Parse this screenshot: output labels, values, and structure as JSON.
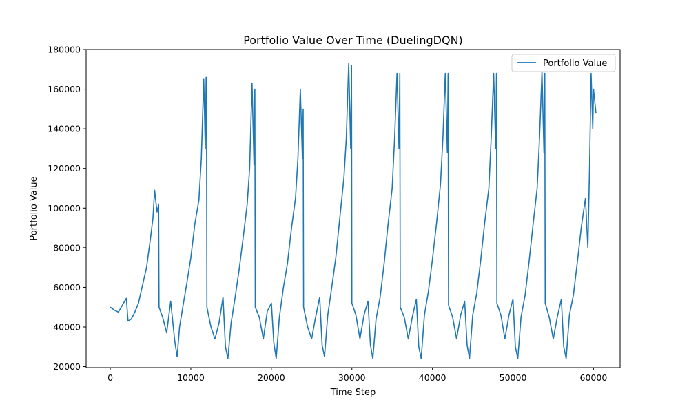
{
  "chart_data": {
    "type": "line",
    "title": "Portfolio Value Over Time (DuelingDQN)",
    "xlabel": "Time Step",
    "ylabel": "Portfolio Value",
    "xlim": [
      -3000,
      63300
    ],
    "ylim": [
      19500,
      180000
    ],
    "xticks": [
      0,
      10000,
      20000,
      30000,
      40000,
      50000,
      60000
    ],
    "yticks": [
      20000,
      40000,
      60000,
      80000,
      100000,
      120000,
      140000,
      160000,
      180000
    ],
    "grid": false,
    "legend": {
      "position": "top-right",
      "entries": [
        "Portfolio Value"
      ]
    },
    "series": [
      {
        "name": "Portfolio Value",
        "color": "#1f77b4",
        "x": [
          0,
          500,
          1000,
          1500,
          2000,
          2200,
          2600,
          3000,
          3500,
          4000,
          4500,
          5000,
          5300,
          5500,
          5800,
          6000,
          6050,
          6500,
          7000,
          7500,
          8000,
          8300,
          8600,
          9000,
          9500,
          10000,
          10500,
          11000,
          11300,
          11600,
          11800,
          11900,
          11950,
          12000,
          12500,
          13000,
          13500,
          14000,
          14300,
          14600,
          15000,
          15500,
          16000,
          16500,
          17000,
          17300,
          17600,
          17850,
          17950,
          18000,
          18500,
          19000,
          19500,
          20000,
          20300,
          20600,
          21000,
          21500,
          22000,
          22500,
          23000,
          23300,
          23600,
          23850,
          23950,
          24000,
          24500,
          25000,
          25500,
          26000,
          26300,
          26600,
          27000,
          27500,
          28000,
          28500,
          29000,
          29300,
          29600,
          29850,
          29950,
          30000,
          30500,
          31000,
          31500,
          32000,
          32300,
          32600,
          33000,
          33500,
          34000,
          34500,
          35000,
          35300,
          35600,
          35850,
          35950,
          36000,
          36500,
          37000,
          37500,
          38000,
          38300,
          38600,
          39000,
          39500,
          40000,
          40500,
          41000,
          41300,
          41600,
          41850,
          41950,
          42000,
          42500,
          43000,
          43500,
          44000,
          44300,
          44600,
          45000,
          45500,
          46000,
          46500,
          47000,
          47300,
          47600,
          47850,
          47950,
          48000,
          48500,
          49000,
          49500,
          50000,
          50300,
          50600,
          51000,
          51500,
          52000,
          52500,
          53000,
          53300,
          53600,
          53850,
          53950,
          54000,
          54500,
          55000,
          55500,
          56000,
          56300,
          56600,
          57000,
          57500,
          58000,
          58500,
          59000,
          59300,
          59500,
          59700,
          59900,
          60000,
          60300
        ],
        "values": [
          50000,
          48500,
          47500,
          51000,
          54500,
          43000,
          44000,
          47000,
          52000,
          61000,
          70000,
          85000,
          95000,
          109000,
          98000,
          102000,
          50000,
          45000,
          37000,
          53000,
          33000,
          25000,
          40000,
          50000,
          62000,
          75000,
          92000,
          104000,
          125000,
          165000,
          130000,
          166000,
          148000,
          50000,
          40000,
          34000,
          42000,
          55000,
          30000,
          24000,
          42000,
          55000,
          69000,
          85000,
          102000,
          120000,
          163000,
          122000,
          160000,
          50000,
          45000,
          34000,
          48000,
          52000,
          32000,
          24000,
          45000,
          60000,
          72000,
          90000,
          105000,
          125000,
          160000,
          125000,
          150000,
          50000,
          40000,
          34000,
          45000,
          55000,
          31000,
          25000,
          46000,
          60000,
          75000,
          95000,
          115000,
          135000,
          173000,
          130000,
          172000,
          52000,
          46000,
          34000,
          46000,
          53000,
          31000,
          24000,
          44000,
          55000,
          72000,
          92000,
          110000,
          135000,
          168000,
          130000,
          168000,
          50000,
          45000,
          34000,
          45000,
          54000,
          30000,
          24000,
          46000,
          58000,
          74000,
          92000,
          112000,
          135000,
          168000,
          128000,
          168000,
          51000,
          45000,
          34000,
          46000,
          53000,
          31000,
          24000,
          46000,
          57000,
          74000,
          93000,
          110000,
          136000,
          168000,
          130000,
          168000,
          52000,
          46000,
          34000,
          46000,
          54000,
          30000,
          24000,
          45000,
          56000,
          73000,
          92000,
          110000,
          136000,
          169000,
          128000,
          168000,
          52000,
          45000,
          34000,
          45000,
          54000,
          30000,
          24000,
          46000,
          56000,
          73000,
          91000,
          105000,
          80000,
          120000,
          168000,
          140000,
          160000,
          148000
        ]
      }
    ]
  }
}
